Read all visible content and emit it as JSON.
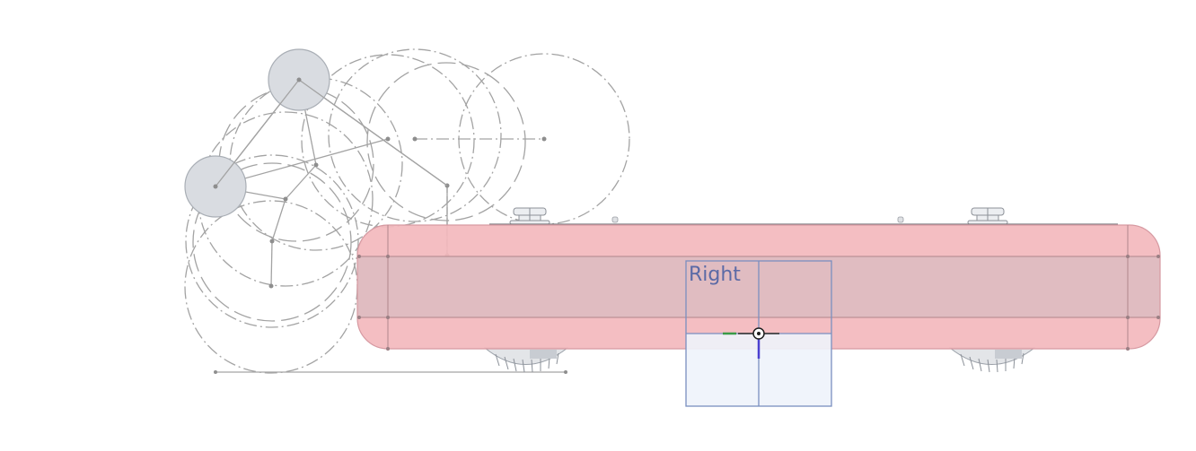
{
  "viewport": {
    "background": "#ffffff",
    "plane_label": "Right"
  },
  "colors": {
    "body_fill": "#f3b8bd",
    "body_band": "#dcbcc1",
    "body_edge": "#d69aa2",
    "plane_edge": "#7a8fc0",
    "plane_fill": "#eef3fb",
    "sketch": "#a3a3a3",
    "disc_fill": "#d9dce1",
    "origin_x": "#3a9a48",
    "origin_y": "#4a3fd0"
  },
  "icons": {
    "origin": "origin-triad-icon",
    "sensor": "sensor-mount-icon",
    "wheel": "wheel-icon"
  }
}
